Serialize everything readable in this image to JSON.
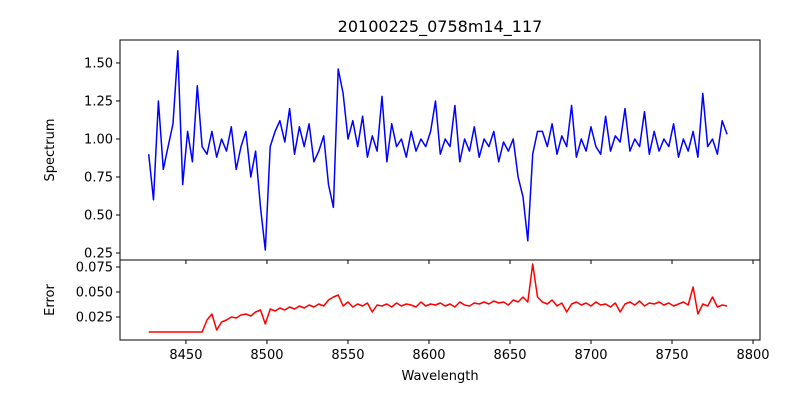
{
  "chart_data": [
    {
      "type": "line",
      "title": "20100225_0758m14_117",
      "xlabel": "",
      "ylabel": "Spectrum",
      "xlim": [
        8409.3,
        8804.3
      ],
      "ylim": [
        0.204,
        1.651
      ],
      "xticks": [
        8450,
        8500,
        8550,
        8600,
        8650,
        8700,
        8750,
        8800
      ],
      "yticks": [
        0.25,
        0.5,
        0.75,
        1.0,
        1.25,
        1.5
      ],
      "ytick_labels": [
        "0.25",
        "0.50",
        "0.75",
        "1.00",
        "1.25",
        "1.50"
      ],
      "series": [
        {
          "name": "Spectrum",
          "color": "#0000ff",
          "x_start": 8427,
          "x_step": 3,
          "values": [
            0.9,
            0.6,
            1.25,
            0.8,
            0.95,
            1.1,
            1.58,
            0.7,
            1.05,
            0.85,
            1.35,
            0.95,
            0.9,
            1.05,
            0.88,
            1.0,
            0.92,
            1.08,
            0.8,
            0.95,
            1.05,
            0.75,
            0.92,
            0.55,
            0.27,
            0.95,
            1.05,
            1.12,
            0.98,
            1.2,
            0.9,
            1.08,
            0.95,
            1.1,
            0.85,
            0.92,
            1.02,
            0.7,
            0.55,
            1.46,
            1.3,
            1.0,
            1.12,
            0.95,
            1.15,
            0.88,
            1.02,
            0.92,
            1.28,
            0.85,
            1.1,
            0.95,
            1.0,
            0.88,
            1.05,
            0.92,
            1.0,
            0.95,
            1.05,
            1.25,
            0.9,
            1.0,
            0.95,
            1.22,
            0.85,
            1.0,
            0.92,
            1.08,
            0.88,
            1.0,
            0.95,
            1.05,
            0.85,
            0.98,
            0.92,
            1.0,
            0.75,
            0.62,
            0.33,
            0.9,
            1.05,
            1.05,
            0.95,
            1.1,
            0.9,
            1.02,
            0.95,
            1.22,
            0.88,
            1.0,
            0.92,
            1.08,
            0.95,
            0.9,
            1.15,
            0.92,
            1.02,
            0.98,
            1.2,
            0.92,
            1.0,
            0.95,
            1.18,
            0.9,
            1.05,
            0.92,
            1.0,
            0.95,
            1.1,
            0.88,
            1.0,
            0.92,
            1.05,
            0.88,
            1.3,
            0.95,
            1.0,
            0.9,
            1.12,
            1.03
          ]
        }
      ]
    },
    {
      "type": "line",
      "xlabel": "Wavelength",
      "ylabel": "Error",
      "xlim": [
        8409.3,
        8804.3
      ],
      "ylim": [
        0.002,
        0.082
      ],
      "xticks": [
        8450,
        8500,
        8550,
        8600,
        8650,
        8700,
        8750,
        8800
      ],
      "xtick_labels": [
        "8450",
        "8500",
        "8550",
        "8600",
        "8650",
        "8700",
        "8750",
        "8800"
      ],
      "yticks": [
        0.025,
        0.05,
        0.075
      ],
      "ytick_labels": [
        "0.025",
        "0.050",
        "0.075"
      ],
      "series": [
        {
          "name": "Error",
          "color": "#ff0000",
          "x_start": 8427,
          "x_step": 3,
          "values": [
            0.01,
            0.01,
            0.01,
            0.01,
            0.01,
            0.01,
            0.01,
            0.01,
            0.01,
            0.01,
            0.01,
            0.01,
            0.022,
            0.028,
            0.012,
            0.02,
            0.022,
            0.025,
            0.024,
            0.027,
            0.028,
            0.026,
            0.03,
            0.032,
            0.018,
            0.033,
            0.031,
            0.034,
            0.032,
            0.035,
            0.033,
            0.036,
            0.034,
            0.037,
            0.035,
            0.038,
            0.036,
            0.042,
            0.045,
            0.047,
            0.036,
            0.04,
            0.035,
            0.038,
            0.036,
            0.039,
            0.03,
            0.037,
            0.036,
            0.038,
            0.035,
            0.039,
            0.036,
            0.038,
            0.037,
            0.035,
            0.04,
            0.036,
            0.038,
            0.037,
            0.039,
            0.036,
            0.038,
            0.035,
            0.04,
            0.037,
            0.036,
            0.039,
            0.038,
            0.04,
            0.038,
            0.041,
            0.039,
            0.04,
            0.037,
            0.042,
            0.04,
            0.045,
            0.04,
            0.078,
            0.045,
            0.04,
            0.038,
            0.042,
            0.036,
            0.039,
            0.03,
            0.038,
            0.04,
            0.037,
            0.039,
            0.036,
            0.04,
            0.037,
            0.038,
            0.035,
            0.039,
            0.03,
            0.038,
            0.04,
            0.037,
            0.041,
            0.036,
            0.039,
            0.038,
            0.04,
            0.037,
            0.039,
            0.036,
            0.038,
            0.04,
            0.037,
            0.055,
            0.028,
            0.038,
            0.036,
            0.045,
            0.035,
            0.037,
            0.036
          ]
        }
      ]
    }
  ]
}
